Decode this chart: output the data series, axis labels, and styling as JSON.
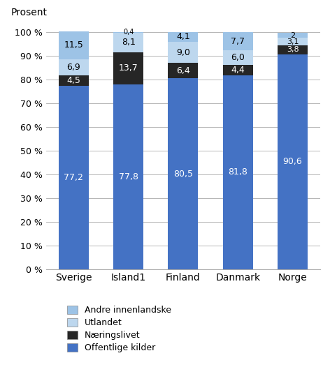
{
  "categories": [
    "Sverige",
    "Island1",
    "Finland",
    "Danmark",
    "Norge"
  ],
  "series": [
    {
      "name": "Offentlige kilder",
      "values": [
        77.2,
        77.8,
        80.5,
        81.8,
        90.6
      ],
      "color": "#4472C4",
      "label_color": "white",
      "label_fontsize": 9
    },
    {
      "name": "Næringslivet",
      "values": [
        4.5,
        13.7,
        6.4,
        4.4,
        3.8
      ],
      "color": "#262626",
      "label_color": "white",
      "label_fontsize": 9
    },
    {
      "name": "Utlandet",
      "values": [
        6.9,
        8.1,
        9.0,
        6.0,
        3.1
      ],
      "color": "#BDD7EE",
      "label_color": "black",
      "label_fontsize": 9
    },
    {
      "name": "Andre innenlandske",
      "values": [
        11.5,
        0.4,
        4.1,
        7.7,
        2.0
      ],
      "color": "#9DC3E6",
      "label_color": "black",
      "label_fontsize": 9
    }
  ],
  "prosent_label": "Prosent",
  "yticks": [
    0,
    10,
    20,
    30,
    40,
    50,
    60,
    70,
    80,
    90,
    100
  ],
  "ytick_labels": [
    "0 %",
    "10 %",
    "20 %",
    "30 %",
    "40 %",
    "50 %",
    "60 %",
    "70 %",
    "80 %",
    "90 %",
    "100 %"
  ],
  "ylim": [
    0,
    104
  ],
  "bar_width": 0.55,
  "background_color": "#FFFFFF",
  "label_values": {
    "Sverige": [
      "77,2",
      "4,5",
      "6,9",
      "11,5"
    ],
    "Island1": [
      "77,8",
      "13,7",
      "8,1",
      "0,4"
    ],
    "Finland": [
      "80,5",
      "6,4",
      "9,0",
      "4,1"
    ],
    "Danmark": [
      "81,8",
      "4,4",
      "6,0",
      "7,7"
    ],
    "Norge": [
      "90,6",
      "3,8",
      "3,1",
      "2"
    ]
  },
  "figsize": [
    4.72,
    5.36
  ],
  "dpi": 100
}
